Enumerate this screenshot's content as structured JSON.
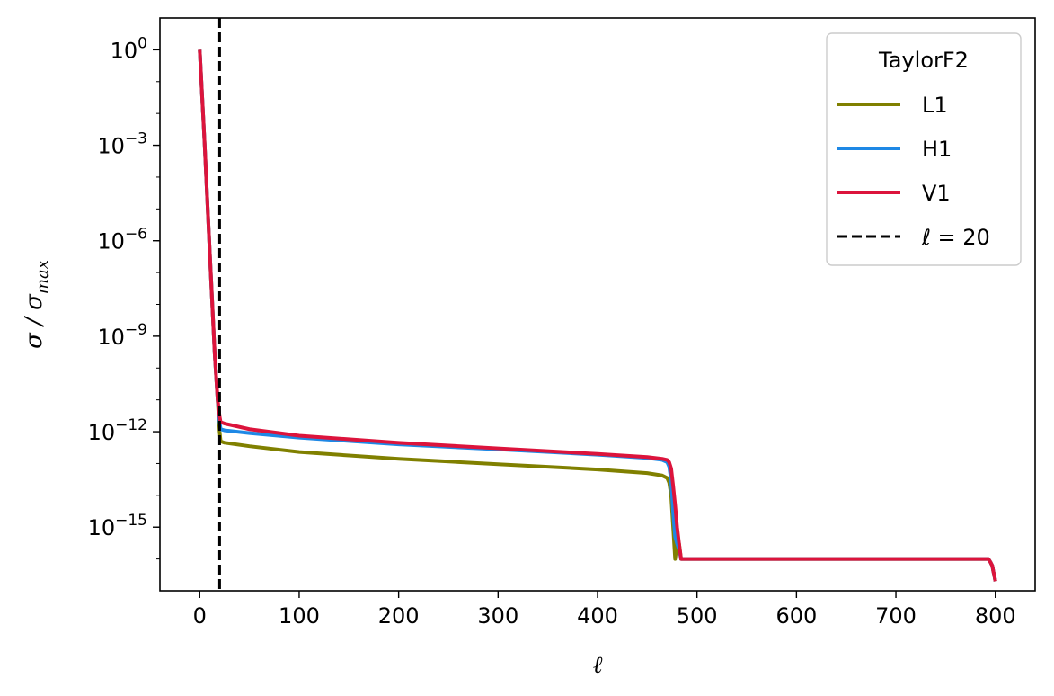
{
  "chart_data": {
    "type": "line",
    "xlabel": "ℓ",
    "ylabel": "σ / σ_max",
    "yscale": "log",
    "xlim": [
      -40,
      840
    ],
    "ylim": [
      1e-17,
      10.0
    ],
    "x_ticks": [
      0,
      100,
      200,
      300,
      400,
      500,
      600,
      700,
      800
    ],
    "y_ticks": [
      {
        "value": 1,
        "base": "10",
        "exp": "0"
      },
      {
        "value": 0.001,
        "base": "10",
        "exp": "−3"
      },
      {
        "value": 1e-06,
        "base": "10",
        "exp": "−6"
      },
      {
        "value": 1e-09,
        "base": "10",
        "exp": "−9"
      },
      {
        "value": 1e-12,
        "base": "10",
        "exp": "−12"
      },
      {
        "value": 1e-15,
        "base": "10",
        "exp": "−15"
      }
    ],
    "grid": false,
    "legend": {
      "title": "TaylorF2",
      "placement": "top-right"
    },
    "series": [
      {
        "name": "L1",
        "color": "#808000",
        "x": [
          0,
          5,
          10,
          15,
          18,
          20,
          21,
          25,
          50,
          100,
          200,
          300,
          400,
          450,
          465,
          470,
          472,
          474,
          476,
          478,
          480,
          482,
          484,
          486,
          600,
          700,
          790,
          793,
          795,
          797,
          798,
          799,
          800
        ],
        "y": [
          1,
          0.001,
          5e-07,
          3e-10,
          1e-11,
          1e-12,
          5e-13,
          4.5e-13,
          3.5e-13,
          2.3e-13,
          1.4e-13,
          9.5e-14,
          6.5e-14,
          5e-14,
          4.2e-14,
          3.5e-14,
          2.5e-14,
          1e-14,
          1e-15,
          1e-16,
          3e-16,
          3e-16,
          1e-16,
          1e-16,
          1e-16,
          1e-16,
          1e-16,
          1e-16,
          8e-17,
          6e-17,
          4e-17,
          3e-17,
          2e-17
        ]
      },
      {
        "name": "H1",
        "color": "#1e88e5",
        "x": [
          0,
          5,
          10,
          15,
          18,
          20,
          21,
          25,
          50,
          100,
          200,
          300,
          400,
          450,
          465,
          470,
          472,
          474,
          476,
          478,
          480,
          482,
          484,
          486,
          600,
          700,
          790,
          793,
          795,
          797,
          798,
          799,
          800
        ],
        "y": [
          1,
          0.001,
          5e-07,
          3e-10,
          1e-11,
          2e-12,
          1.2e-12,
          1.1e-12,
          9e-13,
          6.5e-13,
          4e-13,
          2.8e-13,
          1.9e-13,
          1.5e-13,
          1.3e-13,
          1.1e-13,
          8e-14,
          3e-14,
          3e-15,
          5e-16,
          3e-16,
          2e-16,
          1e-16,
          1e-16,
          1e-16,
          1e-16,
          1e-16,
          1e-16,
          8e-17,
          6e-17,
          4e-17,
          3e-17,
          2e-17
        ]
      },
      {
        "name": "V1",
        "color": "#dc143c",
        "x": [
          0,
          5,
          10,
          15,
          18,
          20,
          21,
          25,
          50,
          100,
          200,
          300,
          400,
          450,
          465,
          470,
          472,
          474,
          476,
          478,
          480,
          482,
          484,
          486,
          600,
          700,
          790,
          793,
          795,
          797,
          798,
          799,
          800
        ],
        "y": [
          1,
          0.001,
          5e-07,
          3e-10,
          1e-11,
          3e-12,
          2e-12,
          1.8e-12,
          1.2e-12,
          7.5e-13,
          4.5e-13,
          3e-13,
          2e-13,
          1.6e-13,
          1.4e-13,
          1.3e-13,
          1.1e-13,
          7e-14,
          2e-14,
          5e-15,
          1e-15,
          3e-16,
          1e-16,
          1e-16,
          1e-16,
          1e-16,
          1e-16,
          1e-16,
          8e-17,
          6e-17,
          4e-17,
          3e-17,
          2e-17
        ]
      }
    ],
    "vline": {
      "x": 20,
      "label": "ℓ = 20",
      "style": "dashed",
      "color": "#000000"
    }
  }
}
